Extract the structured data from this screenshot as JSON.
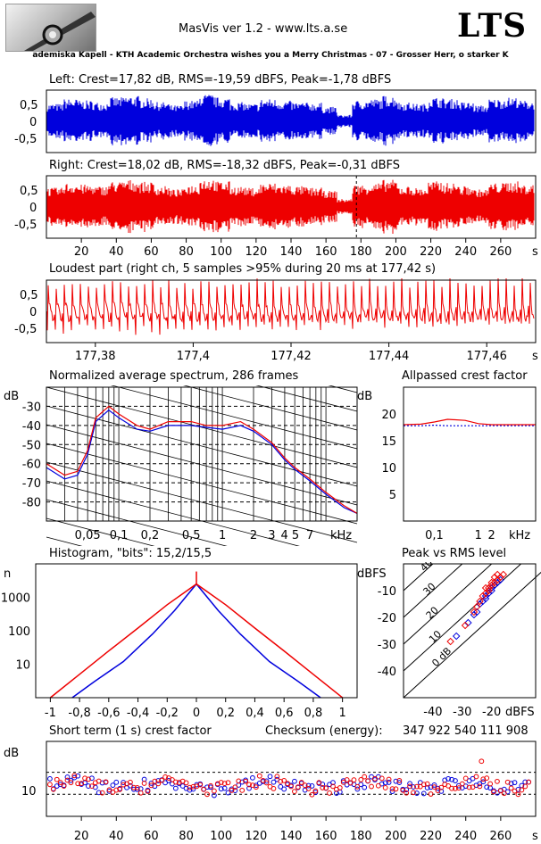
{
  "header": {
    "app_title": "MasVis ver 1.2 - www.lts.a.se",
    "brand": "LTS",
    "track": "ademiska Kapell - KTH Academic Orchestra wishes you a Merry Christmas - 07 - Grosser Herr, o starker K"
  },
  "colors": {
    "left": "#0000dd",
    "right": "#ee0000",
    "grid": "#000000"
  },
  "chart_data": [
    {
      "id": "left_waveform",
      "type": "line",
      "title": "Left: Crest=17,82 dB, RMS=-19,59 dBFS, Peak=-1,78 dBFS",
      "yticks": [
        "0,5",
        "0",
        "-0,5"
      ],
      "ylim": [
        -1,
        1
      ],
      "series": [
        {
          "color": "blue",
          "envelope": [
            0.55,
            0.7,
            0.65,
            0.6,
            0.75,
            0.8,
            0.72,
            0.6,
            0.5,
            0.65,
            0.85,
            0.75,
            0.6,
            0.55,
            0.7,
            0.65,
            0.6,
            0.58,
            0.45,
            0.2,
            0.65,
            0.7,
            0.8,
            0.6,
            0.55,
            0.75,
            0.7,
            0.6,
            0.5,
            0.7,
            0.75,
            0.65
          ]
        }
      ]
    },
    {
      "id": "right_waveform",
      "type": "line",
      "title": "Right: Crest=18,02 dB, RMS=-18,32 dBFS, Peak=-0,31 dBFS",
      "yticks": [
        "0,5",
        "0",
        "-0,5"
      ],
      "ylim": [
        -1,
        1
      ],
      "xticks": [
        "20",
        "40",
        "60",
        "80",
        "100",
        "120",
        "140",
        "160",
        "180",
        "200",
        "220",
        "240",
        "260"
      ],
      "xunit": "s",
      "xlim": [
        0,
        280
      ],
      "marker_x": 177.42,
      "series": [
        {
          "color": "red",
          "envelope": [
            0.6,
            0.75,
            0.7,
            0.65,
            0.8,
            0.85,
            0.78,
            0.65,
            0.55,
            0.7,
            0.9,
            0.8,
            0.65,
            0.6,
            0.75,
            0.7,
            0.65,
            0.6,
            0.5,
            0.25,
            0.7,
            0.75,
            0.85,
            0.65,
            0.6,
            0.8,
            0.75,
            0.65,
            0.55,
            0.75,
            0.8,
            0.7
          ]
        }
      ]
    },
    {
      "id": "loudest_part",
      "type": "line",
      "title": "Loudest part (right ch, 5 samples >95% during 20 ms at 177,42 s)",
      "yticks": [
        "0,5",
        "0",
        "-0,5"
      ],
      "ylim": [
        -1,
        1
      ],
      "xticks": [
        "177,38",
        "177,4",
        "177,42",
        "177,44",
        "177,46"
      ],
      "xunit": "s",
      "xlim": [
        177.37,
        177.47
      ],
      "series": [
        {
          "color": "red",
          "name": ""
        }
      ]
    },
    {
      "id": "avg_spectrum",
      "type": "line",
      "title": "Normalized average spectrum, 286 frames",
      "ylabel": "dB",
      "yticks": [
        "-30",
        "-40",
        "-50",
        "-60",
        "-70",
        "-80"
      ],
      "ylim": [
        -90,
        -20
      ],
      "xticks": [
        "0,05",
        "0,1",
        "0,2",
        "0,5",
        "1",
        "2",
        "3",
        "4 5",
        "7"
      ],
      "xunit": "kHz",
      "xscale": "log",
      "series": [
        {
          "color": "blue",
          "x": [
            0.02,
            0.03,
            0.04,
            0.05,
            0.06,
            0.08,
            0.1,
            0.15,
            0.2,
            0.3,
            0.5,
            0.7,
            1,
            1.5,
            2,
            3,
            4,
            5,
            7,
            10,
            15,
            20
          ],
          "y": [
            -62,
            -68,
            -66,
            -55,
            -38,
            -32,
            -36,
            -42,
            -43,
            -40,
            -40,
            -41,
            -42,
            -40,
            -43,
            -50,
            -58,
            -63,
            -69,
            -76,
            -83,
            -86
          ]
        },
        {
          "color": "red",
          "x": [
            0.02,
            0.03,
            0.04,
            0.05,
            0.06,
            0.08,
            0.1,
            0.15,
            0.2,
            0.3,
            0.5,
            0.7,
            1,
            1.5,
            2,
            3,
            4,
            5,
            7,
            10,
            15,
            20
          ],
          "y": [
            -60,
            -66,
            -64,
            -53,
            -36,
            -30,
            -34,
            -40,
            -42,
            -38,
            -38,
            -40,
            -40,
            -38,
            -42,
            -49,
            -57,
            -62,
            -68,
            -75,
            -82,
            -86
          ]
        }
      ]
    },
    {
      "id": "allpassed_crest",
      "type": "line",
      "title": "Allpassed crest factor",
      "ylabel": "dB",
      "yticks": [
        "20",
        "15",
        "10",
        "5"
      ],
      "ylim": [
        0,
        25
      ],
      "xticks": [
        "0,1",
        "1",
        "2"
      ],
      "xunit": "kHz",
      "xscale": "log",
      "series": [
        {
          "color": "blue",
          "x": [
            0.02,
            0.05,
            0.1,
            0.2,
            0.5,
            1,
            2,
            5,
            20
          ],
          "y": [
            17.8,
            17.8,
            17.9,
            17.8,
            17.8,
            17.8,
            17.8,
            17.8,
            17.8
          ]
        },
        {
          "color": "red",
          "x": [
            0.02,
            0.05,
            0.1,
            0.2,
            0.5,
            1,
            2,
            5,
            20
          ],
          "y": [
            18.0,
            18.1,
            18.5,
            19.0,
            18.8,
            18.2,
            18.0,
            18.0,
            18.0
          ]
        }
      ]
    },
    {
      "id": "histogram",
      "type": "line",
      "title": "Histogram, \"bits\": 15,2/15,5",
      "ylabel": "n",
      "yticks": [
        "1000",
        "100",
        "10"
      ],
      "yscale": "log",
      "xticks": [
        "-1",
        "-0,8",
        "-0,6",
        "-0,4",
        "-0,2",
        "0",
        "0,2",
        "0,4",
        "0,6",
        "0,8",
        "1"
      ],
      "xlim": [
        -1,
        1
      ],
      "series": [
        {
          "color": "blue",
          "x": [
            -0.85,
            -0.7,
            -0.5,
            -0.3,
            -0.15,
            0,
            0.15,
            0.3,
            0.5,
            0.7,
            0.85
          ],
          "y": [
            1,
            3,
            12,
            80,
            400,
            2500,
            400,
            80,
            12,
            3,
            1
          ]
        },
        {
          "color": "red",
          "x": [
            -1,
            -0.8,
            -0.6,
            -0.4,
            -0.2,
            0,
            0.2,
            0.4,
            0.6,
            0.8,
            1
          ],
          "y": [
            1,
            5,
            25,
            120,
            600,
            2500,
            600,
            120,
            25,
            5,
            1
          ]
        }
      ]
    },
    {
      "id": "peak_vs_rms",
      "type": "scatter",
      "title": "Peak vs RMS level",
      "ylabel": "dBFS",
      "xlabel": "dBFS",
      "yticks": [
        "-10",
        "-20",
        "-30",
        "-40"
      ],
      "xticks": [
        "-40",
        "-30",
        "-20"
      ],
      "xlim": [
        -50,
        -5
      ],
      "ylim": [
        -50,
        0
      ],
      "diag_labels": [
        "40",
        "30",
        "20",
        "10",
        "0 dB"
      ],
      "series": [
        {
          "color": "blue",
          "points": [
            [
              -32,
              -27
            ],
            [
              -28,
              -22
            ],
            [
              -25,
              -18
            ],
            [
              -24,
              -15
            ],
            [
              -22,
              -12
            ],
            [
              -21,
              -11
            ],
            [
              -20,
              -9
            ],
            [
              -19,
              -8
            ],
            [
              -18,
              -7
            ],
            [
              -23,
              -14
            ],
            [
              -26,
              -19
            ],
            [
              -20,
              -10
            ],
            [
              -17,
              -6
            ],
            [
              -22,
              -13
            ]
          ]
        },
        {
          "color": "red",
          "points": [
            [
              -34,
              -29
            ],
            [
              -29,
              -23
            ],
            [
              -26,
              -18
            ],
            [
              -24,
              -14
            ],
            [
              -22,
              -11
            ],
            [
              -21,
              -9
            ],
            [
              -20,
              -8
            ],
            [
              -19,
              -7
            ],
            [
              -18,
              -6
            ],
            [
              -17,
              -5
            ],
            [
              -23,
              -12
            ],
            [
              -25,
              -16
            ],
            [
              -20,
              -7
            ],
            [
              -16,
              -4
            ],
            [
              -21,
              -10
            ],
            [
              -19,
              -5
            ],
            [
              -22,
              -9
            ],
            [
              -18,
              -4
            ]
          ]
        }
      ]
    },
    {
      "id": "short_term_crest",
      "type": "scatter",
      "title": "Short term (1 s) crest factor",
      "checksum_label": "Checksum (energy):",
      "checksum_value": "347 922 540 111 908",
      "ylabel": "dB",
      "yticks": [
        "10"
      ],
      "xticks": [
        "20",
        "40",
        "60",
        "80",
        "100",
        "120",
        "140",
        "160",
        "180",
        "200",
        "220",
        "240",
        "260"
      ],
      "xunit": "s",
      "xlim": [
        0,
        280
      ],
      "outlier": {
        "x": 249,
        "y": 17.5
      }
    }
  ]
}
